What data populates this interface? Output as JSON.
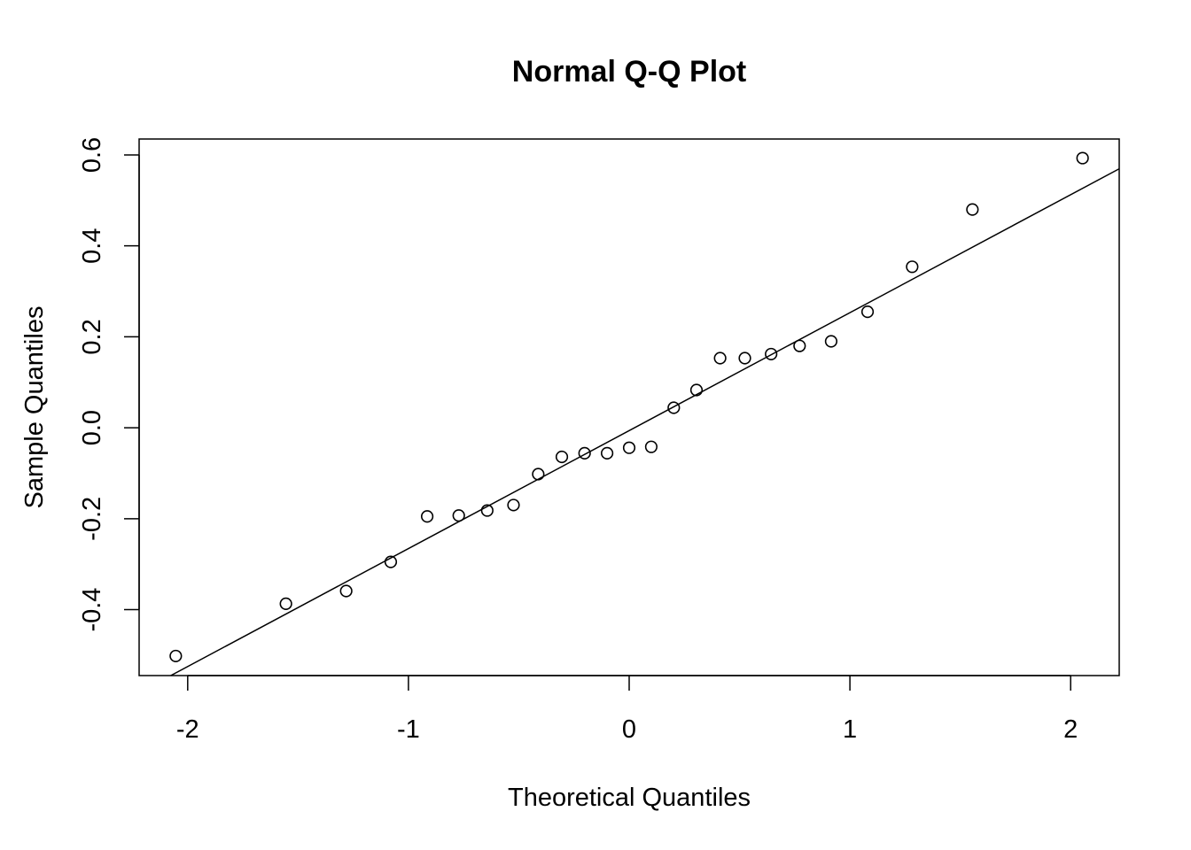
{
  "chart_data": {
    "type": "scatter",
    "title": "Normal Q-Q Plot",
    "xlabel": "Theoretical Quantiles",
    "ylabel": "Sample Quantiles",
    "xlim": [
      -2.22,
      2.22
    ],
    "ylim": [
      -0.545,
      0.635
    ],
    "x_ticks": [
      -2,
      -1,
      0,
      1,
      2
    ],
    "x_tick_labels": [
      "-2",
      "-1",
      "0",
      "1",
      "2"
    ],
    "y_ticks": [
      -0.4,
      -0.2,
      0.0,
      0.2,
      0.4,
      0.6
    ],
    "y_tick_labels": [
      "-0.4",
      "-0.2",
      "0.0",
      "0.2",
      "0.4",
      "0.6"
    ],
    "grid": false,
    "points": [
      {
        "x": -2.054,
        "y": -0.502
      },
      {
        "x": -1.555,
        "y": -0.387
      },
      {
        "x": -1.282,
        "y": -0.359
      },
      {
        "x": -1.08,
        "y": -0.295
      },
      {
        "x": -0.915,
        "y": -0.195
      },
      {
        "x": -0.772,
        "y": -0.193
      },
      {
        "x": -0.643,
        "y": -0.182
      },
      {
        "x": -0.524,
        "y": -0.17
      },
      {
        "x": -0.412,
        "y": -0.102
      },
      {
        "x": -0.305,
        "y": -0.064
      },
      {
        "x": -0.202,
        "y": -0.056
      },
      {
        "x": -0.1,
        "y": -0.056
      },
      {
        "x": 0.0,
        "y": -0.044
      },
      {
        "x": 0.1,
        "y": -0.042
      },
      {
        "x": 0.202,
        "y": 0.044
      },
      {
        "x": 0.305,
        "y": 0.083
      },
      {
        "x": 0.412,
        "y": 0.153
      },
      {
        "x": 0.524,
        "y": 0.153
      },
      {
        "x": 0.643,
        "y": 0.162
      },
      {
        "x": 0.772,
        "y": 0.18
      },
      {
        "x": 0.915,
        "y": 0.19
      },
      {
        "x": 1.08,
        "y": 0.255
      },
      {
        "x": 1.282,
        "y": 0.354
      },
      {
        "x": 1.555,
        "y": 0.48
      },
      {
        "x": 2.054,
        "y": 0.593
      }
    ],
    "reference_line": {
      "intercept": -0.0063,
      "slope": 0.2594
    }
  }
}
